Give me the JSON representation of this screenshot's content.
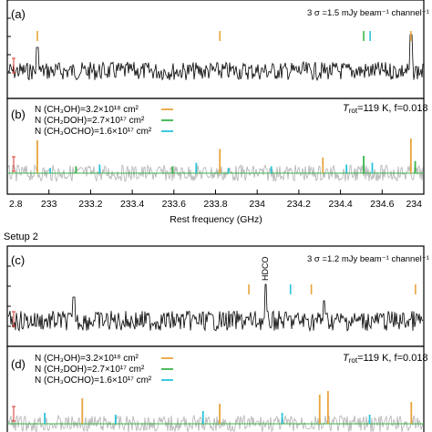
{
  "figure": {
    "setup_label": "Setup 2",
    "x_axis_label": "Rest frequency (GHz)",
    "x_ticks": [
      "2.8",
      "233",
      "233.2",
      "233.4",
      "233.6",
      "233.8",
      "234",
      "234.2",
      "234.4",
      "234.6",
      "234"
    ],
    "legend_label_ch3oh": "N (CH₃OH)=3.2×10¹⁸ cm²",
    "legend_label_ch2doh": "N (CH₂DOH)=2.7×10¹⁷ cm²",
    "legend_label_ch3ocho": "N (CH₃OCHO)=1.6×10¹⁷ cm²"
  },
  "colors": {
    "CH3OH": "#e8a43c",
    "CH2DOH": "#39b54a",
    "CH3OCHO": "#29c4dc",
    "observed": "#000000",
    "residual": "#b0b0b0",
    "model_baseline": "#39b54a",
    "error_bar": "#d9342b"
  },
  "chart_data": [
    {
      "type": "line",
      "panel": "(a)",
      "annotation": "3 σ =1.5 mJy beam⁻¹ channel⁻¹",
      "xlim": [
        232.8,
        234.74
      ],
      "series": [
        {
          "name": "CH3OH",
          "line_markers_ghz": [
            232.94,
            233.79,
            234.68
          ]
        },
        {
          "name": "CH2DOH",
          "line_markers_ghz": [
            234.46
          ]
        },
        {
          "name": "CH3OCHO",
          "line_markers_ghz": [
            234.49
          ]
        }
      ]
    },
    {
      "type": "line",
      "panel": "(b)",
      "annotation": "Tₐ =119 K, f=0.018",
      "annotation_main": "T",
      "annotation_sub": "rot",
      "annotation_rest": "=119 K, f=0.018",
      "xlim": [
        232.8,
        234.74
      ],
      "series": [
        {
          "name": "CH3OH",
          "lines": [
            {
              "x": 232.94,
              "height": 0.95
            },
            {
              "x": 233.79,
              "height": 0.7
            },
            {
              "x": 234.27,
              "height": 0.45
            },
            {
              "x": 234.68,
              "height": 1.0
            }
          ]
        },
        {
          "name": "CH2DOH",
          "lines": [
            {
              "x": 233.12,
              "height": 0.2
            },
            {
              "x": 233.57,
              "height": 0.2
            },
            {
              "x": 234.46,
              "height": 0.5
            },
            {
              "x": 234.7,
              "height": 0.35
            }
          ]
        },
        {
          "name": "CH3OCHO",
          "lines": [
            {
              "x": 233.0,
              "height": 0.15
            },
            {
              "x": 233.23,
              "height": 0.25
            },
            {
              "x": 233.68,
              "height": 0.3
            },
            {
              "x": 233.83,
              "height": 0.15
            },
            {
              "x": 234.03,
              "height": 0.2
            },
            {
              "x": 234.38,
              "height": 0.25
            },
            {
              "x": 234.5,
              "height": 0.3
            }
          ]
        }
      ]
    },
    {
      "type": "line",
      "panel": "(c)",
      "annotation": "3 σ =1.2 mJy beam⁻¹ channel⁻¹",
      "line_label": "HDCO",
      "series": [
        {
          "name": "CH3OH",
          "line_markers_px_rel": [
            0.58,
            0.73,
            0.98
          ]
        },
        {
          "name": "CH3OCHO",
          "line_markers_px_rel": [
            0.68
          ]
        }
      ]
    },
    {
      "type": "line",
      "panel": "(d)",
      "annotation_main": "T",
      "annotation_sub": "rot",
      "annotation_rest": "=119 K, f=0.018",
      "series": [
        {
          "name": "CH3OH",
          "lines_rel": [
            {
              "x": 0.18,
              "height": 0.7
            },
            {
              "x": 0.51,
              "height": 0.55
            },
            {
              "x": 0.75,
              "height": 0.8
            },
            {
              "x": 0.77,
              "height": 0.9
            },
            {
              "x": 0.97,
              "height": 0.6
            }
          ]
        },
        {
          "name": "CH3OCHO",
          "lines_rel": [
            {
              "x": 0.09,
              "height": 0.3
            },
            {
              "x": 0.26,
              "height": 0.25
            },
            {
              "x": 0.47,
              "height": 0.35
            },
            {
              "x": 0.66,
              "height": 0.3
            },
            {
              "x": 0.87,
              "height": 0.25
            }
          ]
        }
      ]
    }
  ]
}
